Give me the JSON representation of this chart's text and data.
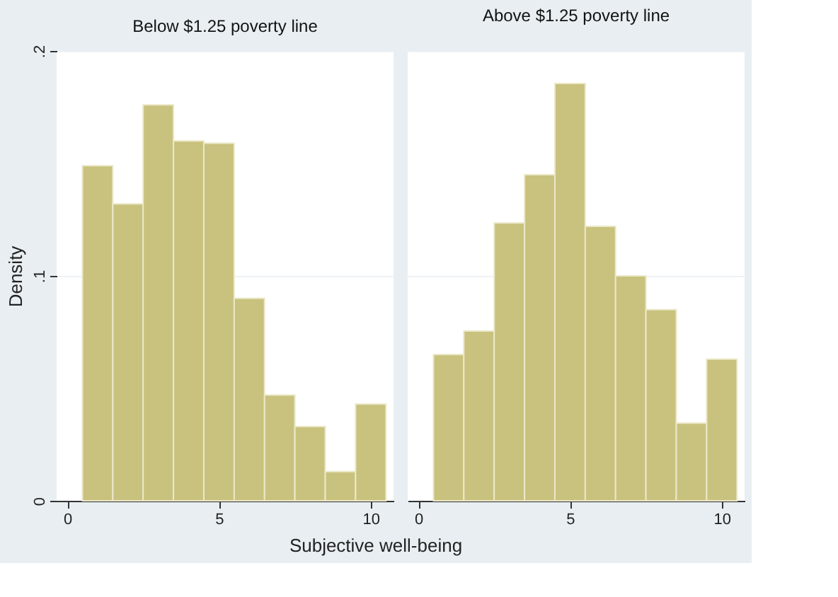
{
  "chart_data": [
    {
      "type": "histogram",
      "title": "Below $1.25 poverty line",
      "xlabel": "Subjective well-being",
      "ylabel": "Density",
      "bins": [
        0.5,
        1.5,
        2.5,
        3.5,
        4.5,
        5.5,
        6.5,
        7.5,
        8.5,
        9.5,
        10.5
      ],
      "values": [
        0.149,
        0.132,
        0.176,
        0.16,
        0.159,
        0.09,
        0.047,
        0.033,
        0.013,
        0.043
      ],
      "color": "#c8c27e",
      "xlim": [
        -0.35,
        10.75
      ],
      "xticks": [
        0,
        5,
        10
      ],
      "ylim": [
        0,
        0.2
      ],
      "yticks": [
        0,
        {
          "value": 0.1,
          "label": ".1"
        },
        {
          "value": 0.2,
          "label": ".2"
        }
      ],
      "grid": "y"
    },
    {
      "type": "histogram",
      "title": "Above $1.25 poverty line",
      "bins": [
        0.5,
        1.5,
        2.5,
        3.5,
        4.5,
        5.5,
        6.5,
        7.5,
        8.5,
        9.5,
        10.5
      ],
      "values": [
        0.065,
        0.0755,
        0.1235,
        0.145,
        0.1855,
        0.122,
        0.1,
        0.085,
        0.0345,
        0.063
      ],
      "color": "#c8c27e",
      "xlim": [
        -0.35,
        10.75
      ],
      "xticks": [
        0,
        5,
        10
      ],
      "ylim": [
        0,
        0.2
      ],
      "yticks": [
        0,
        0.1,
        0.2
      ],
      "grid": "y",
      "tick_labels": "x"
    }
  ]
}
